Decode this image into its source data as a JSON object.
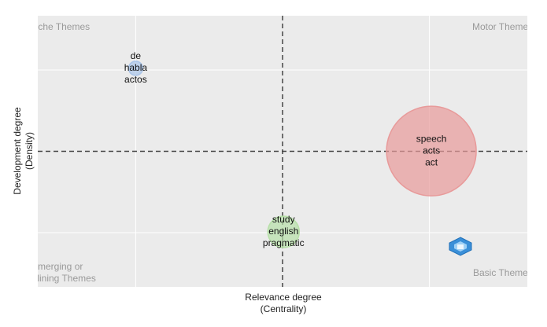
{
  "chart_data": {
    "type": "bubble",
    "x_label": [
      "Relevance degree",
      "(Centrality)"
    ],
    "y_label": [
      "Development degree",
      "(Density)"
    ],
    "quadrants": {
      "top_left": [
        "Niche Themes"
      ],
      "top_right": [
        "Motor Themes"
      ],
      "bottom_left": [
        "Emerging or",
        "Declining Themes"
      ],
      "bottom_right": [
        "Basic Themes"
      ]
    },
    "xlim": [
      0,
      100
    ],
    "ylim": [
      0,
      100
    ],
    "xticks": [
      20,
      80
    ],
    "yticks": [
      20,
      80
    ],
    "grid": true,
    "x_mean": 50,
    "y_mean": 50,
    "points": [
      {
        "label": [
          "de",
          "habla",
          "actos"
        ],
        "x": 20,
        "y": 80.6,
        "size": 2.5,
        "color": "#a9c4e8"
      },
      {
        "label": [
          "speech",
          "acts",
          "act"
        ],
        "x": 80.4,
        "y": 50.1,
        "size": 100,
        "color": "#e89a9a"
      },
      {
        "label": [
          "study",
          "english",
          "pragmatic"
        ],
        "x": 50.2,
        "y": 20.3,
        "size": 12.3,
        "color": "#b7e0a8"
      }
    ]
  }
}
